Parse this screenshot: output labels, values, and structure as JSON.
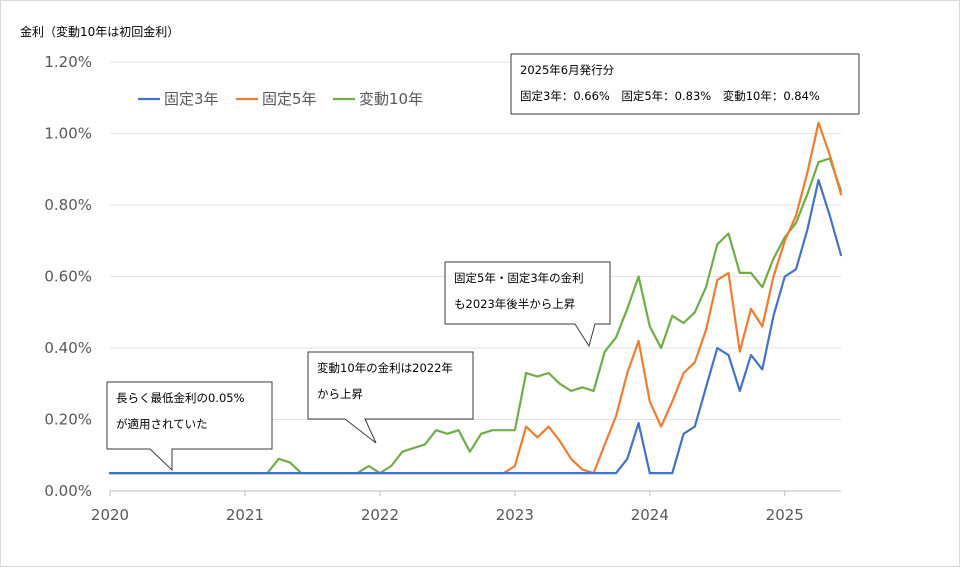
{
  "chart_data": {
    "type": "line",
    "title": "",
    "ylabel": "金利（変動10年は初回金利）",
    "xlabel": "",
    "ylim": [
      0,
      1.2
    ],
    "xlim": [
      "2020-01",
      "2025-06"
    ],
    "y_ticks": [
      "0.00%",
      "0.20%",
      "0.40%",
      "0.60%",
      "0.80%",
      "1.00%",
      "1.20%"
    ],
    "x_ticks": [
      "2020",
      "2021",
      "2022",
      "2023",
      "2024",
      "2025"
    ],
    "grid": "horizontal",
    "legend_position": "top-left",
    "series": [
      {
        "name": "固定3年",
        "color": "#4472c4",
        "points": [
          [
            "2020-01",
            0.05
          ],
          [
            "2020-12",
            0.05
          ],
          [
            "2021-12",
            0.05
          ],
          [
            "2022-12",
            0.05
          ],
          [
            "2023-06",
            0.05
          ],
          [
            "2023-09",
            0.05
          ],
          [
            "2023-10",
            0.05
          ],
          [
            "2023-11",
            0.09
          ],
          [
            "2023-12",
            0.19
          ],
          [
            "2024-01",
            0.05
          ],
          [
            "2024-02",
            0.05
          ],
          [
            "2024-03",
            0.05
          ],
          [
            "2024-04",
            0.16
          ],
          [
            "2024-05",
            0.18
          ],
          [
            "2024-06",
            0.29
          ],
          [
            "2024-07",
            0.4
          ],
          [
            "2024-08",
            0.38
          ],
          [
            "2024-09",
            0.28
          ],
          [
            "2024-10",
            0.38
          ],
          [
            "2024-11",
            0.34
          ],
          [
            "2024-12",
            0.49
          ],
          [
            "2025-01",
            0.6
          ],
          [
            "2025-02",
            0.62
          ],
          [
            "2025-03",
            0.73
          ],
          [
            "2025-04",
            0.87
          ],
          [
            "2025-05",
            0.77
          ],
          [
            "2025-06",
            0.66
          ]
        ]
      },
      {
        "name": "固定5年",
        "color": "#ed7d31",
        "points": [
          [
            "2020-01",
            0.05
          ],
          [
            "2020-12",
            0.05
          ],
          [
            "2021-12",
            0.05
          ],
          [
            "2022-12",
            0.05
          ],
          [
            "2023-01",
            0.07
          ],
          [
            "2023-02",
            0.18
          ],
          [
            "2023-03",
            0.15
          ],
          [
            "2023-04",
            0.18
          ],
          [
            "2023-05",
            0.14
          ],
          [
            "2023-06",
            0.09
          ],
          [
            "2023-07",
            0.06
          ],
          [
            "2023-08",
            0.05
          ],
          [
            "2023-09",
            0.13
          ],
          [
            "2023-10",
            0.21
          ],
          [
            "2023-11",
            0.33
          ],
          [
            "2023-12",
            0.42
          ],
          [
            "2024-01",
            0.25
          ],
          [
            "2024-02",
            0.18
          ],
          [
            "2024-03",
            0.25
          ],
          [
            "2024-04",
            0.33
          ],
          [
            "2024-05",
            0.36
          ],
          [
            "2024-06",
            0.45
          ],
          [
            "2024-07",
            0.59
          ],
          [
            "2024-08",
            0.61
          ],
          [
            "2024-09",
            0.39
          ],
          [
            "2024-10",
            0.51
          ],
          [
            "2024-11",
            0.46
          ],
          [
            "2024-12",
            0.6
          ],
          [
            "2025-01",
            0.7
          ],
          [
            "2025-02",
            0.77
          ],
          [
            "2025-03",
            0.89
          ],
          [
            "2025-04",
            1.03
          ],
          [
            "2025-05",
            0.94
          ],
          [
            "2025-06",
            0.83
          ]
        ]
      },
      {
        "name": "変動10年",
        "color": "#70ad47",
        "points": [
          [
            "2020-01",
            0.05
          ],
          [
            "2020-12",
            0.05
          ],
          [
            "2021-01",
            0.05
          ],
          [
            "2021-02",
            0.05
          ],
          [
            "2021-03",
            0.05
          ],
          [
            "2021-04",
            0.09
          ],
          [
            "2021-05",
            0.08
          ],
          [
            "2021-06",
            0.05
          ],
          [
            "2021-09",
            0.05
          ],
          [
            "2021-11",
            0.05
          ],
          [
            "2021-12",
            0.07
          ],
          [
            "2022-01",
            0.05
          ],
          [
            "2022-02",
            0.07
          ],
          [
            "2022-03",
            0.11
          ],
          [
            "2022-04",
            0.12
          ],
          [
            "2022-05",
            0.13
          ],
          [
            "2022-06",
            0.17
          ],
          [
            "2022-07",
            0.16
          ],
          [
            "2022-08",
            0.17
          ],
          [
            "2022-09",
            0.11
          ],
          [
            "2022-10",
            0.16
          ],
          [
            "2022-11",
            0.17
          ],
          [
            "2022-12",
            0.17
          ],
          [
            "2023-01",
            0.17
          ],
          [
            "2023-02",
            0.33
          ],
          [
            "2023-03",
            0.32
          ],
          [
            "2023-04",
            0.33
          ],
          [
            "2023-05",
            0.3
          ],
          [
            "2023-06",
            0.28
          ],
          [
            "2023-07",
            0.29
          ],
          [
            "2023-08",
            0.28
          ],
          [
            "2023-09",
            0.39
          ],
          [
            "2023-10",
            0.43
          ],
          [
            "2023-11",
            0.51
          ],
          [
            "2023-12",
            0.6
          ],
          [
            "2024-01",
            0.46
          ],
          [
            "2024-02",
            0.4
          ],
          [
            "2024-03",
            0.49
          ],
          [
            "2024-04",
            0.47
          ],
          [
            "2024-05",
            0.5
          ],
          [
            "2024-06",
            0.57
          ],
          [
            "2024-07",
            0.69
          ],
          [
            "2024-08",
            0.72
          ],
          [
            "2024-09",
            0.61
          ],
          [
            "2024-10",
            0.61
          ],
          [
            "2024-11",
            0.57
          ],
          [
            "2024-12",
            0.65
          ],
          [
            "2025-01",
            0.71
          ],
          [
            "2025-02",
            0.75
          ],
          [
            "2025-03",
            0.83
          ],
          [
            "2025-04",
            0.92
          ],
          [
            "2025-05",
            0.93
          ],
          [
            "2025-06",
            0.84
          ]
        ]
      }
    ],
    "annotations": [
      {
        "id": "box-2025",
        "lines": [
          "2025年6月発行分",
          "固定3年：0.66%　固定5年：0.83%　変動10年：0.84%"
        ]
      },
      {
        "id": "box-2023",
        "lines": [
          "固定5年・固定3年の金利",
          "も2023年後半から上昇"
        ]
      },
      {
        "id": "box-2022",
        "lines": [
          "変動10年の金利は2022年",
          "から上昇"
        ]
      },
      {
        "id": "box-2020",
        "lines": [
          "長らく最低金利の0.05%",
          "が適用されていた"
        ]
      }
    ]
  }
}
